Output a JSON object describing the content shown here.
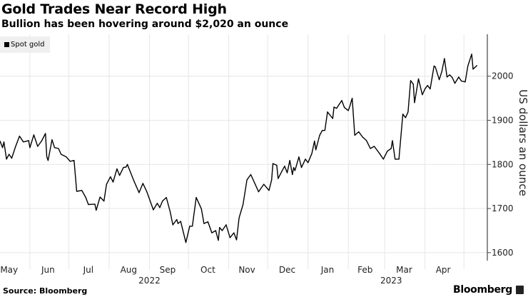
{
  "title": "Gold Trades Near Record High",
  "subtitle": "Bullion has been hovering around $2,020 an ounce",
  "source": "Source: Bloomberg",
  "logo_text": "Bloomberg",
  "chart_data": {
    "type": "line",
    "title": "Gold Trades Near Record High",
    "subtitle": "Bullion has been hovering around $2,020 an ounce",
    "ylabel": "US dollars an ounce",
    "xlabel": "",
    "legend": [
      "Spot gold"
    ],
    "legend_position": "top-left",
    "y_axis_side": "right",
    "grid": true,
    "line_color": "#000000",
    "xlim": [
      "2022-05-09",
      "2023-05-19"
    ],
    "ylim": [
      1582,
      2095
    ],
    "yticks": [
      1600,
      1700,
      1800,
      1900,
      2000
    ],
    "xticks": [
      {
        "label": "May",
        "date": "2022-05-16"
      },
      {
        "label": "Jun",
        "date": "2022-06-15"
      },
      {
        "label": "Jul",
        "date": "2022-07-16"
      },
      {
        "label": "Aug",
        "date": "2022-08-16"
      },
      {
        "label": "Sep",
        "date": "2022-09-15"
      },
      {
        "label": "Oct",
        "date": "2022-10-16"
      },
      {
        "label": "Nov",
        "date": "2022-11-15"
      },
      {
        "label": "Dec",
        "date": "2022-12-16"
      },
      {
        "label": "Jan",
        "date": "2023-01-16"
      },
      {
        "label": "Feb",
        "date": "2023-02-14"
      },
      {
        "label": "Mar",
        "date": "2023-03-16"
      },
      {
        "label": "Apr",
        "date": "2023-04-15"
      }
    ],
    "month_gridlines": [
      "2022-06-01",
      "2022-07-01",
      "2022-08-01",
      "2022-09-01",
      "2022-10-01",
      "2022-11-01",
      "2022-12-01",
      "2023-01-01",
      "2023-02-01",
      "2023-03-01",
      "2023-04-01",
      "2023-05-01"
    ],
    "year_labels": [
      {
        "label": "2022",
        "date": "2022-09-01"
      },
      {
        "label": "2023",
        "date": "2023-03-06"
      }
    ],
    "series": [
      {
        "name": "Spot gold",
        "points": [
          [
            "2022-05-09",
            1853
          ],
          [
            "2022-05-11",
            1838
          ],
          [
            "2022-05-12",
            1851
          ],
          [
            "2022-05-14",
            1812
          ],
          [
            "2022-05-16",
            1823
          ],
          [
            "2022-05-18",
            1814
          ],
          [
            "2022-05-21",
            1841
          ],
          [
            "2022-05-24",
            1864
          ],
          [
            "2022-05-27",
            1851
          ],
          [
            "2022-05-31",
            1854
          ],
          [
            "2022-06-01",
            1838
          ],
          [
            "2022-06-04",
            1867
          ],
          [
            "2022-06-07",
            1841
          ],
          [
            "2022-06-10",
            1853
          ],
          [
            "2022-06-13",
            1870
          ],
          [
            "2022-06-14",
            1817
          ],
          [
            "2022-06-15",
            1809
          ],
          [
            "2022-06-18",
            1856
          ],
          [
            "2022-06-20",
            1838
          ],
          [
            "2022-06-23",
            1836
          ],
          [
            "2022-06-25",
            1823
          ],
          [
            "2022-06-29",
            1817
          ],
          [
            "2022-07-02",
            1807
          ],
          [
            "2022-07-05",
            1809
          ],
          [
            "2022-07-07",
            1739
          ],
          [
            "2022-07-11",
            1741
          ],
          [
            "2022-07-14",
            1725
          ],
          [
            "2022-07-16",
            1709
          ],
          [
            "2022-07-21",
            1710
          ],
          [
            "2022-07-22",
            1696
          ],
          [
            "2022-07-25",
            1726
          ],
          [
            "2022-07-28",
            1717
          ],
          [
            "2022-07-30",
            1755
          ],
          [
            "2022-08-02",
            1772
          ],
          [
            "2022-08-04",
            1760
          ],
          [
            "2022-08-07",
            1790
          ],
          [
            "2022-08-09",
            1775
          ],
          [
            "2022-08-12",
            1793
          ],
          [
            "2022-08-14",
            1794
          ],
          [
            "2022-08-15",
            1800
          ],
          [
            "2022-08-20",
            1763
          ],
          [
            "2022-08-24",
            1736
          ],
          [
            "2022-08-27",
            1757
          ],
          [
            "2022-08-30",
            1738
          ],
          [
            "2022-09-04",
            1697
          ],
          [
            "2022-09-07",
            1712
          ],
          [
            "2022-09-09",
            1702
          ],
          [
            "2022-09-11",
            1717
          ],
          [
            "2022-09-14",
            1725
          ],
          [
            "2022-09-17",
            1692
          ],
          [
            "2022-09-19",
            1663
          ],
          [
            "2022-09-22",
            1675
          ],
          [
            "2022-09-23",
            1666
          ],
          [
            "2022-09-25",
            1671
          ],
          [
            "2022-09-29",
            1623
          ],
          [
            "2022-10-02",
            1660
          ],
          [
            "2022-10-04",
            1660
          ],
          [
            "2022-10-07",
            1725
          ],
          [
            "2022-10-11",
            1699
          ],
          [
            "2022-10-13",
            1666
          ],
          [
            "2022-10-16",
            1670
          ],
          [
            "2022-10-19",
            1645
          ],
          [
            "2022-10-22",
            1650
          ],
          [
            "2022-10-24",
            1628
          ],
          [
            "2022-10-25",
            1657
          ],
          [
            "2022-10-27",
            1650
          ],
          [
            "2022-10-30",
            1663
          ],
          [
            "2022-11-02",
            1634
          ],
          [
            "2022-11-05",
            1645
          ],
          [
            "2022-11-07",
            1629
          ],
          [
            "2022-11-09",
            1679
          ],
          [
            "2022-11-12",
            1709
          ],
          [
            "2022-11-15",
            1765
          ],
          [
            "2022-11-18",
            1777
          ],
          [
            "2022-11-24",
            1738
          ],
          [
            "2022-11-28",
            1755
          ],
          [
            "2022-12-02",
            1741
          ],
          [
            "2022-12-04",
            1765
          ],
          [
            "2022-12-05",
            1802
          ],
          [
            "2022-12-08",
            1798
          ],
          [
            "2022-12-09",
            1768
          ],
          [
            "2022-12-12",
            1785
          ],
          [
            "2022-12-14",
            1796
          ],
          [
            "2022-12-16",
            1781
          ],
          [
            "2022-12-18",
            1809
          ],
          [
            "2022-12-20",
            1777
          ],
          [
            "2022-12-21",
            1793
          ],
          [
            "2022-12-22",
            1786
          ],
          [
            "2022-12-25",
            1817
          ],
          [
            "2022-12-27",
            1793
          ],
          [
            "2022-12-30",
            1812
          ],
          [
            "2023-01-01",
            1804
          ],
          [
            "2023-01-04",
            1825
          ],
          [
            "2023-01-06",
            1853
          ],
          [
            "2023-01-07",
            1833
          ],
          [
            "2023-01-10",
            1866
          ],
          [
            "2023-01-12",
            1877
          ],
          [
            "2023-01-14",
            1877
          ],
          [
            "2023-01-16",
            1919
          ],
          [
            "2023-01-20",
            1904
          ],
          [
            "2023-01-21",
            1930
          ],
          [
            "2023-01-23",
            1927
          ],
          [
            "2023-01-27",
            1945
          ],
          [
            "2023-01-29",
            1929
          ],
          [
            "2023-02-01",
            1922
          ],
          [
            "2023-02-02",
            1930
          ],
          [
            "2023-02-04",
            1950
          ],
          [
            "2023-02-06",
            1866
          ],
          [
            "2023-02-09",
            1874
          ],
          [
            "2023-02-12",
            1862
          ],
          [
            "2023-02-15",
            1854
          ],
          [
            "2023-02-18",
            1836
          ],
          [
            "2023-02-21",
            1841
          ],
          [
            "2023-02-25",
            1825
          ],
          [
            "2023-02-28",
            1812
          ],
          [
            "2023-03-03",
            1830
          ],
          [
            "2023-03-06",
            1836
          ],
          [
            "2023-03-07",
            1854
          ],
          [
            "2023-03-09",
            1812
          ],
          [
            "2023-03-12",
            1812
          ],
          [
            "2023-03-15",
            1914
          ],
          [
            "2023-03-17",
            1906
          ],
          [
            "2023-03-19",
            1919
          ],
          [
            "2023-03-21",
            1990
          ],
          [
            "2023-03-23",
            1982
          ],
          [
            "2023-03-24",
            1940
          ],
          [
            "2023-03-27",
            1994
          ],
          [
            "2023-03-30",
            1958
          ],
          [
            "2023-04-01",
            1971
          ],
          [
            "2023-04-03",
            1979
          ],
          [
            "2023-04-05",
            1971
          ],
          [
            "2023-04-08",
            2023
          ],
          [
            "2023-04-09",
            2021
          ],
          [
            "2023-04-12",
            1992
          ],
          [
            "2023-04-14",
            2011
          ],
          [
            "2023-04-16",
            2040
          ],
          [
            "2023-04-18",
            1998
          ],
          [
            "2023-04-20",
            2003
          ],
          [
            "2023-04-22",
            1997
          ],
          [
            "2023-04-24",
            1984
          ],
          [
            "2023-04-27",
            1998
          ],
          [
            "2023-04-29",
            1989
          ],
          [
            "2023-05-02",
            1987
          ],
          [
            "2023-05-04",
            2023
          ],
          [
            "2023-05-07",
            2050
          ],
          [
            "2023-05-08",
            2016
          ],
          [
            "2023-05-11",
            2024
          ]
        ]
      }
    ]
  }
}
